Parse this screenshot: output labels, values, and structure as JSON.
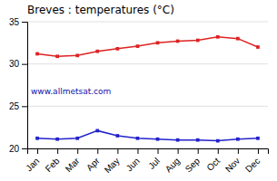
{
  "chart_data": {
    "type": "line",
    "title": "Breves : temperatures (°C)",
    "categories": [
      "Jan",
      "Feb",
      "Mar",
      "Apr",
      "May",
      "Jun",
      "Jul",
      "Aug",
      "Sep",
      "Oct",
      "Nov",
      "Dec"
    ],
    "series": [
      {
        "color": "#dd2222",
        "marker": "square",
        "values": [
          31.2,
          30.9,
          31.0,
          31.5,
          31.8,
          32.1,
          32.5,
          32.7,
          32.8,
          33.2,
          33.0,
          32.0
        ]
      },
      {
        "color": "#2222cc",
        "marker": "square",
        "values": [
          21.2,
          21.1,
          21.2,
          22.1,
          21.5,
          21.2,
          21.1,
          21.0,
          21.0,
          20.9,
          21.1,
          21.2
        ]
      }
    ],
    "ylim": [
      20,
      35
    ],
    "yticks": [
      20,
      25,
      30,
      35
    ],
    "grid": true,
    "annotations": [
      "www.allmetsat.com"
    ]
  }
}
